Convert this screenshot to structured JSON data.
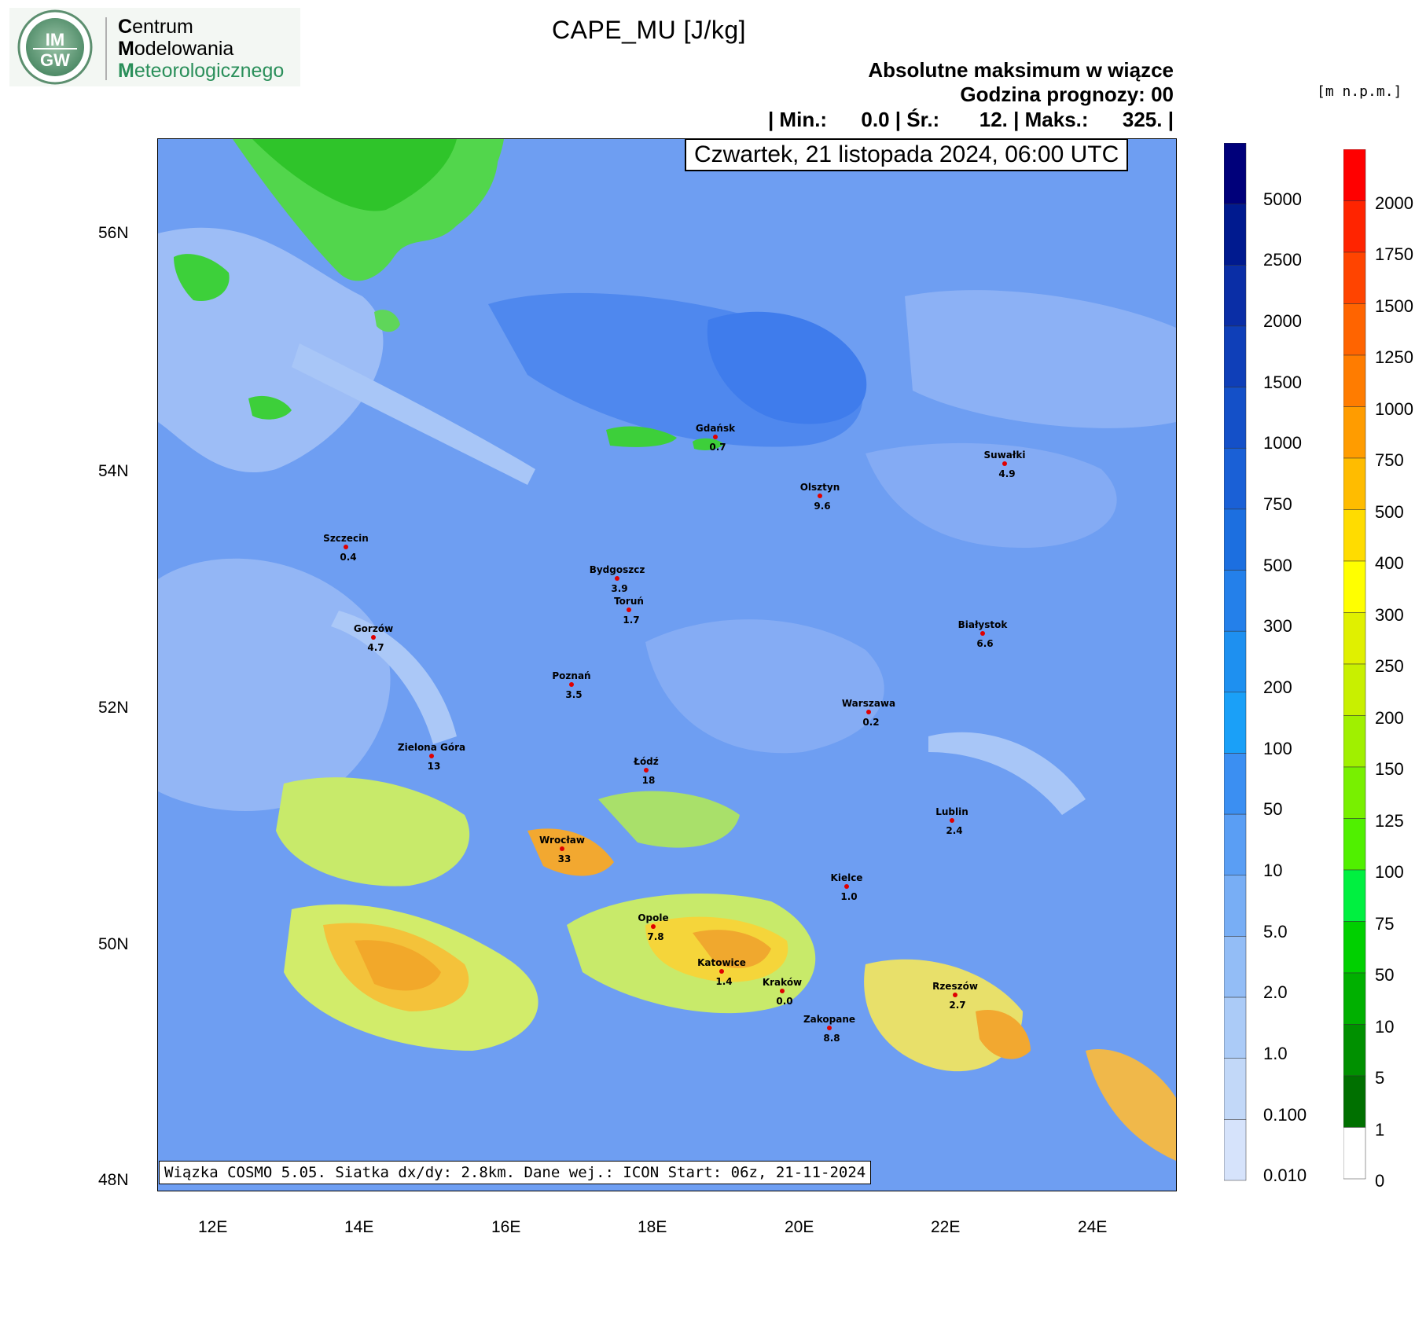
{
  "logo": {
    "badge_top": "IM",
    "badge_bottom": "GW",
    "line1_initial": "C",
    "line1_rest": "entrum",
    "line2_initial": "M",
    "line2_rest": "odelowania",
    "line3_initial": "M",
    "line3_rest": "eteorologicznego"
  },
  "header": {
    "title": "CAPE_MU [J/kg]",
    "subtitle1": "Absolutne maksimum w wiązce",
    "subtitle2": "Godzina prognozy: 00",
    "stats": "| Min.:      0.0 | Śr.:       12. | Maks.:      325. |",
    "date": "Czwartek, 21 listopada 2024, 06:00 UTC"
  },
  "footer": "Wiązka COSMO 5.05. Siatka dx/dy: 2.8km. Dane wej.: ICON Start: 06z, 21-11-2024",
  "axes": {
    "y_labels": [
      "56N",
      "54N",
      "52N",
      "50N",
      "48N"
    ],
    "x_labels": [
      "12E",
      "14E",
      "16E",
      "18E",
      "20E",
      "22E",
      "24E"
    ]
  },
  "colorbar_blue": {
    "labels": [
      "5000",
      "2500",
      "2000",
      "1500",
      "1000",
      "750",
      "500",
      "300",
      "200",
      "100",
      "50",
      "10",
      "5.0",
      "2.0",
      "1.0",
      "0.100",
      "0.010"
    ],
    "colors": [
      "#00007a",
      "#001a8f",
      "#0a2ea6",
      "#0f3fb8",
      "#1450c8",
      "#1a60d6",
      "#1c6fe0",
      "#2480ea",
      "#1e90f0",
      "#1aa0f8",
      "#3b8ff2",
      "#5a9ef4",
      "#78aef5",
      "#93bdf6",
      "#abcbf7",
      "#c2d8f8",
      "#d6e3fb"
    ]
  },
  "colorbar_red": {
    "units": "[m n.p.m.]",
    "labels": [
      "2000",
      "1750",
      "1500",
      "1250",
      "1000",
      "750",
      "500",
      "400",
      "300",
      "250",
      "200",
      "150",
      "125",
      "100",
      "75",
      "50",
      "10",
      "5",
      "1",
      "0"
    ],
    "colors": [
      "#ff0000",
      "#ff2400",
      "#ff4400",
      "#ff6400",
      "#ff7c00",
      "#ff9c00",
      "#ffbc00",
      "#ffdc00",
      "#ffff00",
      "#e0f000",
      "#c8f000",
      "#a0f000",
      "#78f000",
      "#50f000",
      "#00f040",
      "#00d000",
      "#00b000",
      "#009000",
      "#007000",
      "#ffffff"
    ]
  },
  "cities": [
    {
      "name": "Gdańsk",
      "value": "0.7"
    },
    {
      "name": "Suwałki",
      "value": "4.9"
    },
    {
      "name": "Olsztyn",
      "value": "9.6"
    },
    {
      "name": "Szczecin",
      "value": "0.4"
    },
    {
      "name": "Bydgoszcz",
      "value": "3.9"
    },
    {
      "name": "Toruń",
      "value": "1.7"
    },
    {
      "name": "Białystok",
      "value": "6.6"
    },
    {
      "name": "Gorzów",
      "value": "4.7"
    },
    {
      "name": "Poznań",
      "value": "3.5"
    },
    {
      "name": "Warszawa",
      "value": "0.2"
    },
    {
      "name": "Zielona Góra",
      "value": "13"
    },
    {
      "name": "Łódź",
      "value": "18"
    },
    {
      "name": "Lublin",
      "value": "2.4"
    },
    {
      "name": "Wrocław",
      "value": "33"
    },
    {
      "name": "Kielce",
      "value": "1.0"
    },
    {
      "name": "Opole",
      "value": "7.8"
    },
    {
      "name": "Katowice",
      "value": "1.4"
    },
    {
      "name": "Kraków",
      "value": "0.0"
    },
    {
      "name": "Rzeszów",
      "value": "2.7"
    },
    {
      "name": "Zakopane",
      "value": "8.8"
    }
  ]
}
